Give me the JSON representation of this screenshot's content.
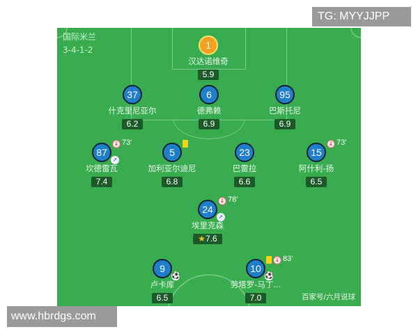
{
  "watermark_top": "TG: MYYJJPP",
  "watermark_bottom": "www.hbrdgs.com",
  "team": {
    "name": "国际米兰",
    "formation": "3-4-1-2"
  },
  "credit": "百家号/六月说球",
  "colors": {
    "pitch": "#3aac50",
    "player": "#1f7fcb",
    "goalkeeper": "#f5a020",
    "rating_bg": "#1d5a2a"
  },
  "players": [
    {
      "number": "1",
      "name": "汉达诺维奇",
      "rating": "5.9",
      "gk": true
    },
    {
      "number": "37",
      "name": "什克里尼亚尔",
      "rating": "6.2"
    },
    {
      "number": "6",
      "name": "德弗赖",
      "rating": "6.9"
    },
    {
      "number": "95",
      "name": "巴斯托尼",
      "rating": "6.9"
    },
    {
      "number": "87",
      "name": "坎德雷瓦",
      "rating": "7.4",
      "sub_minute": "73'",
      "assist": true
    },
    {
      "number": "5",
      "name": "加利亚尔迪尼",
      "rating": "6.8",
      "yellow": true
    },
    {
      "number": "23",
      "name": "巴雷拉",
      "rating": "6.6"
    },
    {
      "number": "15",
      "name": "阿什利-扬",
      "rating": "6.5",
      "sub_minute": "73'"
    },
    {
      "number": "24",
      "name": "埃里克森",
      "rating": "7.6",
      "sub_minute": "78'",
      "assist": true,
      "best": true
    },
    {
      "number": "9",
      "name": "卢卡库",
      "rating": "6.5",
      "goal": true
    },
    {
      "number": "10",
      "name": "劳塔罗-马丁...",
      "rating": "7.0",
      "sub_minute": "83'",
      "yellow": true,
      "goal": true
    }
  ]
}
